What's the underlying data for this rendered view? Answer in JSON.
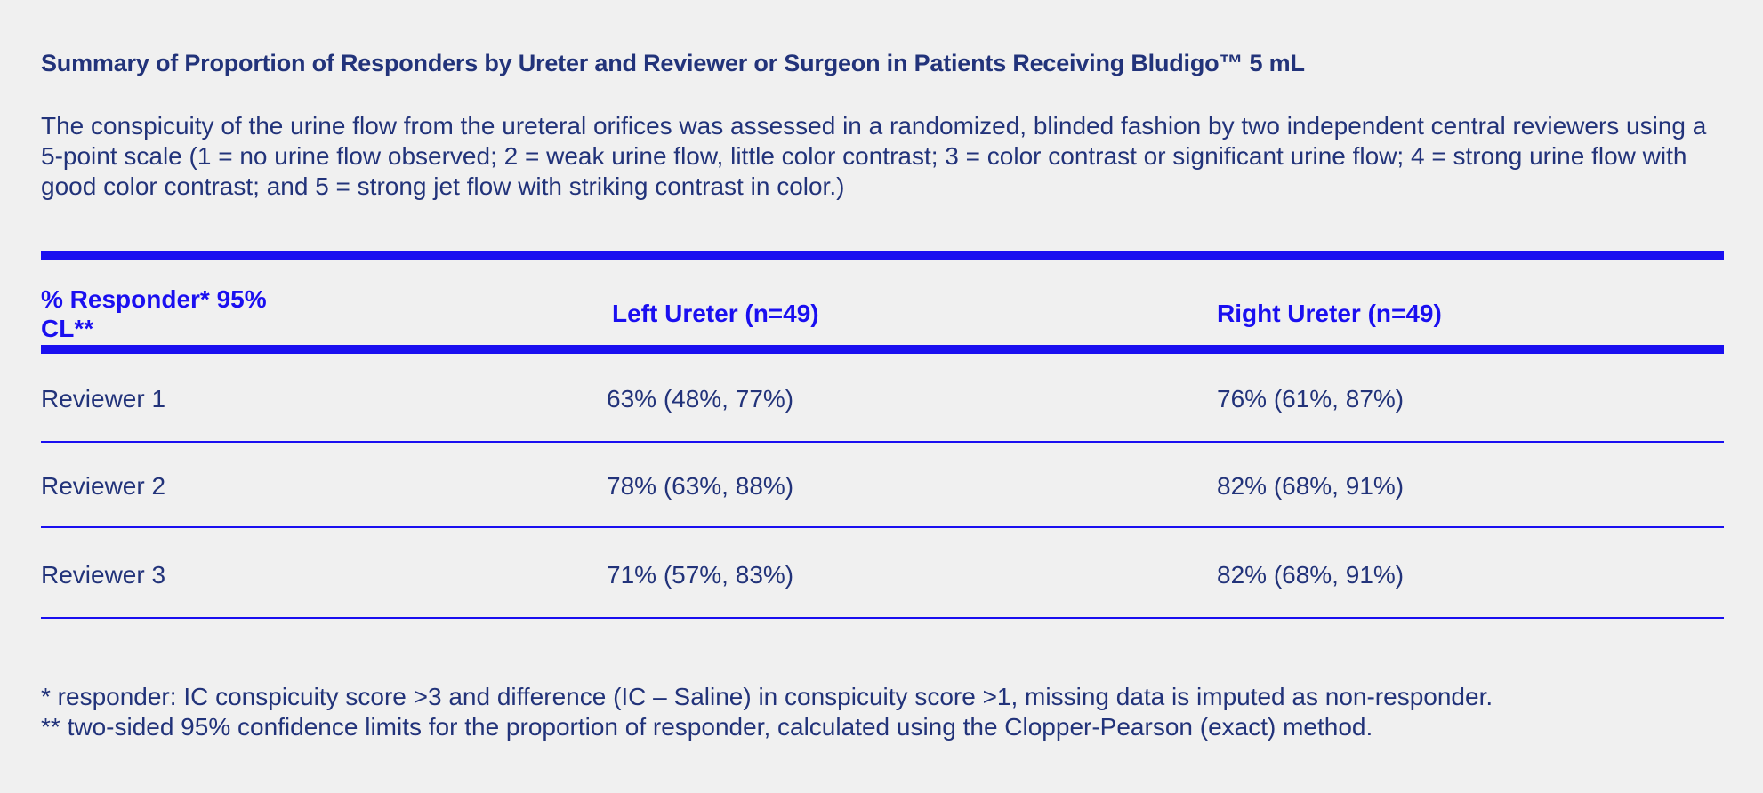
{
  "title": "Summary of Proportion of Responders by Ureter and Reviewer or Surgeon in Patients Receiving Bludigo™ 5 mL",
  "description": "The conspicuity of the urine flow from the ureteral orifices was assessed in a randomized, blinded fashion by two independent central reviewers using a 5-point scale (1 = no urine flow observed; 2 = weak urine flow, little color contrast; 3 = color contrast or significant urine flow; 4 = strong urine flow with good color contrast; and 5 = strong jet flow with striking contrast in color.)",
  "table": {
    "headers": [
      "% Responder* 95% CL**",
      "Left Ureter (n=49)",
      "Right Ureter (n=49)"
    ],
    "rows": [
      [
        "Reviewer 1",
        "63% (48%, 77%)",
        "76% (61%, 87%)"
      ],
      [
        "Reviewer 2",
        "78% (63%, 88%)",
        "82% (68%, 91%)"
      ],
      [
        "Reviewer 3",
        "71% (57%, 83%)",
        "82% (68%, 91%)"
      ]
    ]
  },
  "footnotes": [
    "* responder: IC conspicuity score >3 and difference (IC – Saline) in conspicuity score >1, missing data is imputed as non-responder.",
    "** two-sided 95% confidence limits for the proportion of responder, calculated using the Clopper-Pearson (exact) method."
  ],
  "colors": {
    "background": "#f0f0f0",
    "text": "#22337a",
    "accent": "#1a0ff0"
  }
}
